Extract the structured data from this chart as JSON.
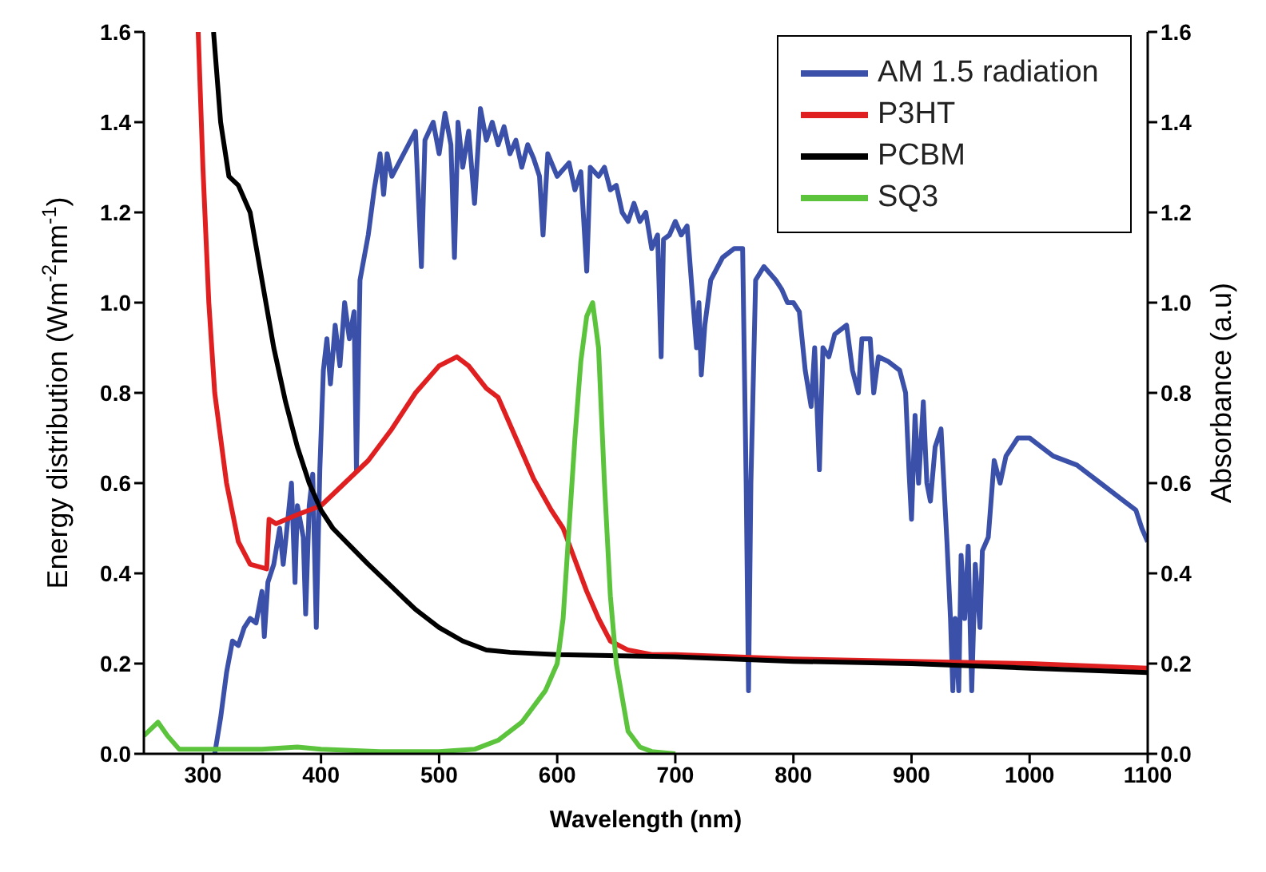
{
  "chart_data": {
    "type": "line",
    "xlabel": "Wavelength (nm)",
    "ylabel": "Energy distribution (Wm$^{-2}$nm$^{-1}$)",
    "y2label": "Absorbance (a.u)",
    "xlim": [
      250,
      1100
    ],
    "xticks": [
      300,
      400,
      500,
      600,
      700,
      800,
      900,
      1000,
      1100
    ],
    "ylim": [
      0,
      1.6
    ],
    "yticks": [
      {
        "value": 0,
        "label": "0.0"
      },
      0.2,
      0.4,
      0.6,
      0.8,
      {
        "value": 1,
        "label": "1.0"
      },
      1.2,
      1.4,
      1.6
    ],
    "y2lim": [
      0,
      1.6
    ],
    "y2ticks": [
      {
        "value": 0,
        "label": "0.0"
      },
      0.2,
      0.4,
      0.6,
      0.8,
      {
        "value": 1,
        "label": "1.0"
      },
      1.2,
      1.4,
      1.6
    ],
    "grid": false,
    "legend": "top right",
    "marker": "none",
    "line_style": "solid",
    "series": [
      {
        "name": "AM 1.5 radiation",
        "color": "#3b50a8",
        "x": [
          310,
          315,
          320,
          325,
          330,
          335,
          340,
          345,
          350,
          352,
          355,
          360,
          365,
          368,
          370,
          375,
          378,
          380,
          385,
          387,
          390,
          393,
          396,
          399,
          402,
          405,
          408,
          412,
          416,
          420,
          424,
          428,
          430,
          433,
          440,
          445,
          450,
          453,
          456,
          460,
          470,
          480,
          485,
          488,
          495,
          500,
          505,
          510,
          513,
          516,
          520,
          525,
          530,
          535,
          540,
          545,
          550,
          555,
          560,
          565,
          570,
          575,
          580,
          585,
          588,
          592,
          600,
          610,
          615,
          620,
          625,
          628,
          635,
          640,
          645,
          650,
          655,
          660,
          665,
          670,
          675,
          680,
          685,
          688,
          690,
          695,
          700,
          705,
          710,
          715,
          718,
          720,
          722,
          725,
          730,
          740,
          750,
          757,
          760,
          762,
          764,
          768,
          775,
          785,
          790,
          795,
          800,
          805,
          810,
          815,
          818,
          822,
          825,
          830,
          835,
          845,
          850,
          855,
          858,
          865,
          868,
          872,
          880,
          890,
          895,
          898,
          900,
          903,
          906,
          910,
          913,
          916,
          920,
          925,
          930,
          933,
          935,
          937,
          940,
          942,
          945,
          948,
          951,
          954,
          958,
          960,
          965,
          970,
          975,
          980,
          985,
          990,
          1000,
          1010,
          1020,
          1040,
          1060,
          1080,
          1090,
          1095,
          1100
        ],
        "values": [
          0.0,
          0.08,
          0.18,
          0.25,
          0.24,
          0.28,
          0.3,
          0.29,
          0.36,
          0.26,
          0.38,
          0.42,
          0.5,
          0.42,
          0.47,
          0.6,
          0.38,
          0.55,
          0.48,
          0.31,
          0.55,
          0.62,
          0.28,
          0.63,
          0.85,
          0.92,
          0.82,
          0.95,
          0.86,
          1.0,
          0.92,
          0.98,
          0.63,
          1.05,
          1.15,
          1.25,
          1.33,
          1.24,
          1.33,
          1.28,
          1.33,
          1.38,
          1.08,
          1.36,
          1.4,
          1.33,
          1.42,
          1.35,
          1.1,
          1.4,
          1.3,
          1.38,
          1.22,
          1.43,
          1.36,
          1.4,
          1.35,
          1.39,
          1.33,
          1.36,
          1.3,
          1.35,
          1.32,
          1.28,
          1.15,
          1.33,
          1.28,
          1.31,
          1.25,
          1.29,
          1.07,
          1.3,
          1.28,
          1.3,
          1.25,
          1.26,
          1.2,
          1.18,
          1.22,
          1.18,
          1.2,
          1.12,
          1.15,
          0.88,
          1.14,
          1.15,
          1.18,
          1.15,
          1.17,
          1.0,
          0.9,
          1.0,
          0.84,
          0.95,
          1.05,
          1.1,
          1.12,
          1.12,
          0.6,
          0.14,
          0.6,
          1.05,
          1.08,
          1.05,
          1.03,
          1.0,
          1.0,
          0.98,
          0.85,
          0.77,
          0.9,
          0.63,
          0.9,
          0.88,
          0.93,
          0.95,
          0.85,
          0.8,
          0.92,
          0.92,
          0.8,
          0.88,
          0.87,
          0.85,
          0.8,
          0.62,
          0.52,
          0.75,
          0.6,
          0.78,
          0.6,
          0.56,
          0.68,
          0.72,
          0.47,
          0.3,
          0.14,
          0.3,
          0.14,
          0.44,
          0.3,
          0.46,
          0.14,
          0.42,
          0.28,
          0.45,
          0.48,
          0.65,
          0.6,
          0.66,
          0.68,
          0.7,
          0.7,
          0.68,
          0.66,
          0.64,
          0.6,
          0.56,
          0.54,
          0.5,
          0.47
        ]
      },
      {
        "name": "P3HT",
        "color": "#e02020",
        "axis": "y2",
        "x": [
          296,
          300,
          305,
          310,
          320,
          330,
          340,
          354,
          356,
          362,
          380,
          400,
          420,
          440,
          460,
          480,
          500,
          515,
          525,
          540,
          550,
          565,
          580,
          595,
          605,
          615,
          625,
          635,
          645,
          660,
          680,
          700,
          800,
          900,
          1000,
          1100
        ],
        "values": [
          1.6,
          1.3,
          1.0,
          0.8,
          0.6,
          0.47,
          0.42,
          0.41,
          0.52,
          0.51,
          0.53,
          0.55,
          0.6,
          0.65,
          0.72,
          0.8,
          0.86,
          0.88,
          0.86,
          0.81,
          0.79,
          0.7,
          0.61,
          0.54,
          0.5,
          0.43,
          0.36,
          0.3,
          0.25,
          0.23,
          0.22,
          0.22,
          0.21,
          0.205,
          0.2,
          0.19
        ]
      },
      {
        "name": "PCBM",
        "color": "#000000",
        "axis": "y2",
        "x": [
          309,
          315,
          322,
          330,
          340,
          350,
          360,
          370,
          380,
          390,
          400,
          410,
          425,
          440,
          460,
          480,
          500,
          520,
          540,
          560,
          600,
          700,
          800,
          900,
          1000,
          1100
        ],
        "values": [
          1.6,
          1.4,
          1.28,
          1.26,
          1.2,
          1.05,
          0.9,
          0.78,
          0.68,
          0.6,
          0.54,
          0.5,
          0.46,
          0.42,
          0.37,
          0.32,
          0.28,
          0.25,
          0.23,
          0.225,
          0.22,
          0.215,
          0.205,
          0.2,
          0.19,
          0.18
        ]
      },
      {
        "name": "SQ3",
        "color": "#5cc43c",
        "axis": "y2",
        "x": [
          250,
          262,
          270,
          280,
          300,
          350,
          380,
          400,
          450,
          500,
          530,
          550,
          570,
          590,
          600,
          605,
          610,
          615,
          620,
          625,
          630,
          635,
          640,
          645,
          650,
          660,
          670,
          680,
          700
        ],
        "values": [
          0.04,
          0.07,
          0.04,
          0.01,
          0.01,
          0.01,
          0.015,
          0.01,
          0.005,
          0.005,
          0.01,
          0.03,
          0.07,
          0.14,
          0.2,
          0.3,
          0.5,
          0.7,
          0.87,
          0.97,
          1.0,
          0.9,
          0.6,
          0.35,
          0.2,
          0.05,
          0.015,
          0.005,
          0.0
        ]
      }
    ]
  }
}
